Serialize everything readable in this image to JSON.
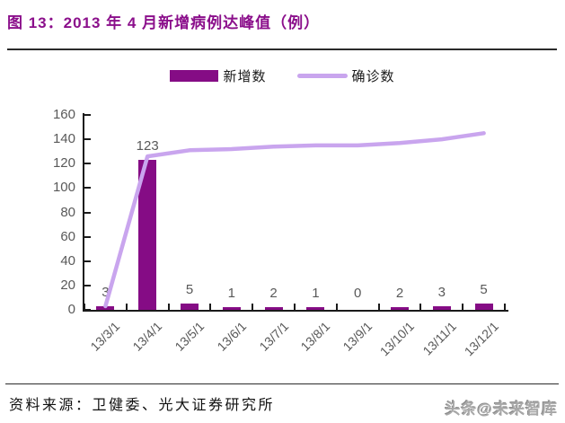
{
  "header": {
    "title": "图 13：2013 年 4 月新增病例达峰值（例）"
  },
  "footer": {
    "source": "资料来源：卫健委、光大证券研究所",
    "watermark": "头条@未来智库"
  },
  "colors": {
    "title": "#8B0F8B",
    "bar": "#850C85",
    "line": "#C9A5EE",
    "axis_text": "#595959",
    "axis_line": "#1a1a1a"
  },
  "chart_data": {
    "type": "bar",
    "combo": "bar+line",
    "title": "图 13：2013 年 4 月新增病例达峰值（例）",
    "categories": [
      "13/3/1",
      "13/4/1",
      "13/5/1",
      "13/6/1",
      "13/7/1",
      "13/8/1",
      "13/9/1",
      "13/10/1",
      "13/11/1",
      "13/12/1"
    ],
    "series": [
      {
        "name": "新增数",
        "type": "bar",
        "color": "#850C85",
        "values": [
          3,
          123,
          5,
          1,
          2,
          1,
          0,
          2,
          3,
          5
        ],
        "data_labels": true
      },
      {
        "name": "确诊数",
        "type": "line",
        "color": "#C9A5EE",
        "values": [
          3,
          126,
          131,
          132,
          134,
          135,
          135,
          137,
          140,
          145
        ],
        "data_labels": false
      }
    ],
    "xlabel": "",
    "ylabel": "",
    "ylim": [
      0,
      160
    ],
    "ytick_step": 20,
    "grid": false,
    "legend_position": "top"
  }
}
